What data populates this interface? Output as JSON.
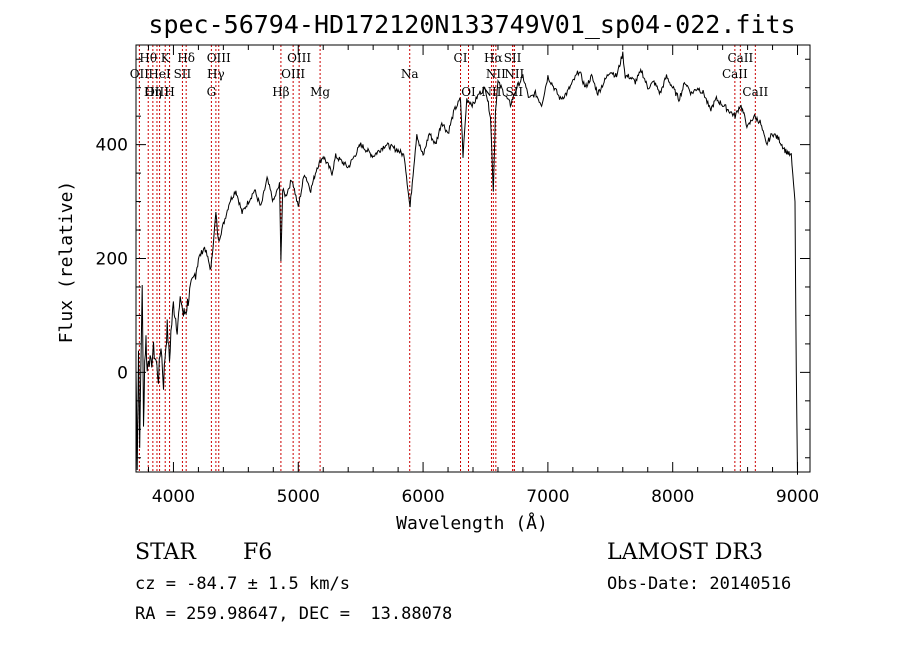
{
  "chart_data": {
    "type": "line",
    "title": "spec-56794-HD172120N133749V01_sp04-022.fits",
    "xlabel": "Wavelength (Å)",
    "ylabel": "Flux (relative)",
    "xlim": [
      3700,
      9100
    ],
    "ylim": [
      -175,
      575
    ],
    "xticks": [
      4000,
      5000,
      6000,
      7000,
      8000,
      9000
    ],
    "yticks": [
      0,
      200,
      400
    ],
    "grid": false,
    "series": [
      {
        "x": [
          3700,
          3710,
          3720,
          3730,
          3740,
          3750,
          3760,
          3770,
          3780,
          3790,
          3800,
          3820,
          3840,
          3860,
          3880,
          3900,
          3920,
          3933,
          3950,
          3968,
          3980,
          4000,
          4030,
          4060,
          4080,
          4101,
          4130,
          4160,
          4200,
          4250,
          4300,
          4340,
          4360,
          4400,
          4450,
          4500,
          4550,
          4600,
          4650,
          4700,
          4750,
          4800,
          4850,
          4861,
          4875,
          4900,
          4950,
          5000,
          5050,
          5100,
          5150,
          5200,
          5270,
          5300,
          5400,
          5500,
          5600,
          5700,
          5800,
          5850,
          5890,
          5896,
          5920,
          5950,
          5970,
          6000,
          6050,
          6100,
          6150,
          6200,
          6250,
          6300,
          6320,
          6350,
          6400,
          6450,
          6500,
          6540,
          6563,
          6580,
          6600,
          6650,
          6700,
          6750,
          6800,
          6850,
          6900,
          6950,
          7000,
          7050,
          7100,
          7150,
          7200,
          7250,
          7300,
          7350,
          7400,
          7450,
          7500,
          7550,
          7600,
          7620,
          7650,
          7700,
          7750,
          7800,
          7850,
          7900,
          7950,
          8000,
          8050,
          8100,
          8150,
          8200,
          8250,
          8300,
          8350,
          8400,
          8450,
          8500,
          8542,
          8560,
          8600,
          8650,
          8700,
          8750,
          8800,
          8850,
          8900,
          8950,
          8980,
          8990,
          9000
        ],
        "values": [
          10,
          -160,
          40,
          -120,
          20,
          160,
          -100,
          20,
          60,
          0,
          30,
          10,
          40,
          20,
          -10,
          50,
          -20,
          30,
          80,
          20,
          70,
          120,
          80,
          130,
          100,
          110,
          140,
          160,
          200,
          220,
          180,
          280,
          230,
          260,
          300,
          320,
          280,
          300,
          320,
          290,
          340,
          300,
          330,
          200,
          320,
          310,
          340,
          290,
          350,
          320,
          360,
          380,
          350,
          380,
          360,
          400,
          380,
          400,
          390,
          380,
          300,
          290,
          350,
          420,
          400,
          380,
          420,
          400,
          440,
          420,
          460,
          480,
          380,
          480,
          470,
          490,
          500,
          450,
          320,
          460,
          510,
          490,
          470,
          500,
          520,
          480,
          490,
          470,
          520,
          500,
          480,
          490,
          510,
          530,
          500,
          520,
          490,
          510,
          530,
          520,
          560,
          520,
          520,
          510,
          530,
          500,
          510,
          490,
          520,
          500,
          480,
          510,
          490,
          500,
          490,
          460,
          480,
          470,
          460,
          450,
          470,
          460,
          430,
          450,
          440,
          400,
          420,
          410,
          390,
          380,
          300,
          0,
          -180
        ]
      }
    ],
    "line_labels": [
      {
        "text": "Hθ",
        "x": 3798,
        "row": 1
      },
      {
        "text": "K",
        "x": 3934,
        "row": 1
      },
      {
        "text": "Hδ",
        "x": 4102,
        "row": 1
      },
      {
        "text": "OIII",
        "x": 4363,
        "row": 1
      },
      {
        "text": "OIII",
        "x": 5007,
        "row": 1
      },
      {
        "text": "CI",
        "x": 6300,
        "row": 1
      },
      {
        "text": "Hα",
        "x": 6563,
        "row": 1
      },
      {
        "text": "SII",
        "x": 6717,
        "row": 1
      },
      {
        "text": "CaII",
        "x": 8542,
        "row": 1
      },
      {
        "text": "OII",
        "x": 3727,
        "row": 2
      },
      {
        "text": "HeI",
        "x": 3889,
        "row": 2
      },
      {
        "text": "SII",
        "x": 4072,
        "row": 2
      },
      {
        "text": "Hγ",
        "x": 4340,
        "row": 2
      },
      {
        "text": "OIII",
        "x": 4959,
        "row": 2
      },
      {
        "text": "Na",
        "x": 5893,
        "row": 2
      },
      {
        "text": "NII",
        "x": 6583,
        "row": 2
      },
      {
        "text": "NII",
        "x": 6731,
        "row": 2
      },
      {
        "text": "CaII",
        "x": 8498,
        "row": 2
      },
      {
        "text": "OIII",
        "x": 3868,
        "row": 3
      },
      {
        "text": "Hη",
        "x": 3835,
        "row": 3
      },
      {
        "text": "H",
        "x": 3969,
        "row": 3
      },
      {
        "text": "G",
        "x": 4304,
        "row": 3
      },
      {
        "text": "Hβ",
        "x": 4861,
        "row": 3
      },
      {
        "text": "Mg",
        "x": 5175,
        "row": 3
      },
      {
        "text": "OI",
        "x": 6364,
        "row": 3
      },
      {
        "text": "NII",
        "x": 6548,
        "row": 3
      },
      {
        "text": "SII",
        "x": 6731,
        "row": 3
      },
      {
        "text": "CaII",
        "x": 8662,
        "row": 3
      }
    ]
  },
  "info": {
    "object_type": "STAR",
    "subclass": "F6",
    "survey": "LAMOST DR3",
    "redshift": "cz = -84.7 ± 1.5 km/s",
    "obs_date": "Obs-Date: 20140516",
    "coords": "RA = 259.98647, DEC =  13.88078"
  }
}
